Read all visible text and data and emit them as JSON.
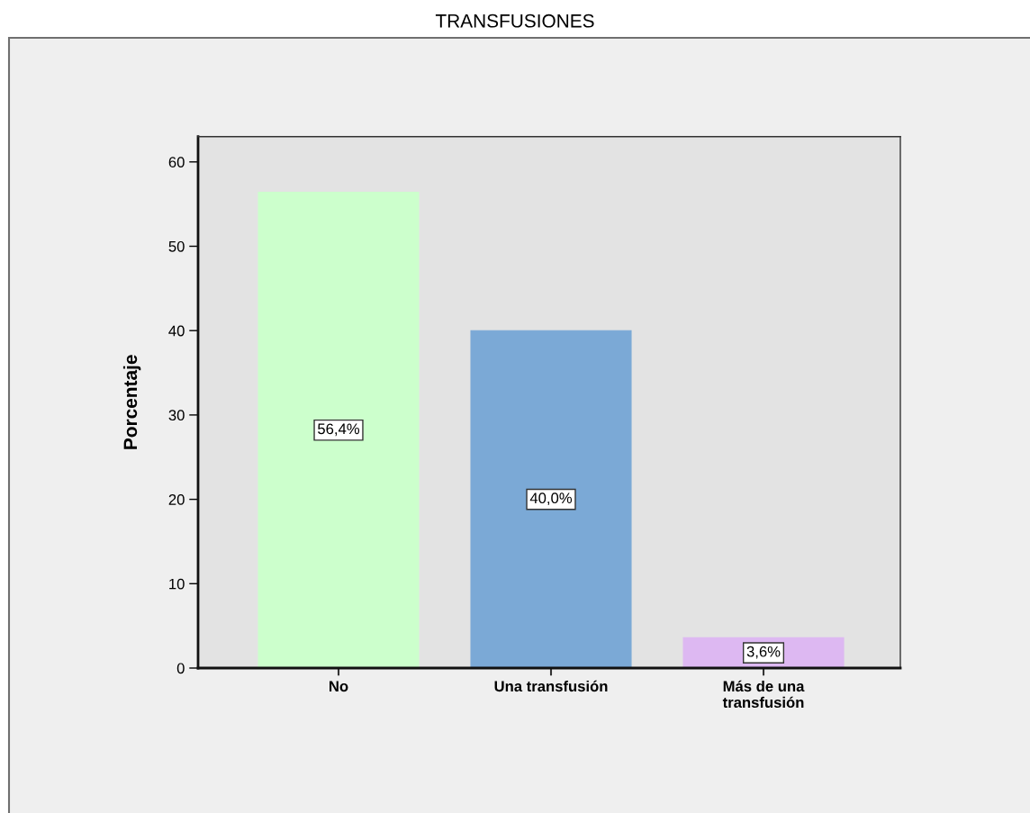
{
  "chart_data": {
    "type": "bar",
    "title": "TRANSFUSIONES",
    "ylabel": "Porcentaje",
    "categories": [
      "No",
      "Una transfusión",
      "Más de una\ntransfusión"
    ],
    "values": [
      56.4,
      40.0,
      3.6
    ],
    "colors": [
      "#ccffcc",
      "#7ba9d6",
      "#ddb8f2"
    ],
    "value_labels": [
      "56,4%",
      "40,0%",
      "3,6%"
    ],
    "ylim": [
      0,
      63
    ],
    "yticks": [
      0,
      10,
      20,
      30,
      40,
      50,
      60
    ]
  }
}
